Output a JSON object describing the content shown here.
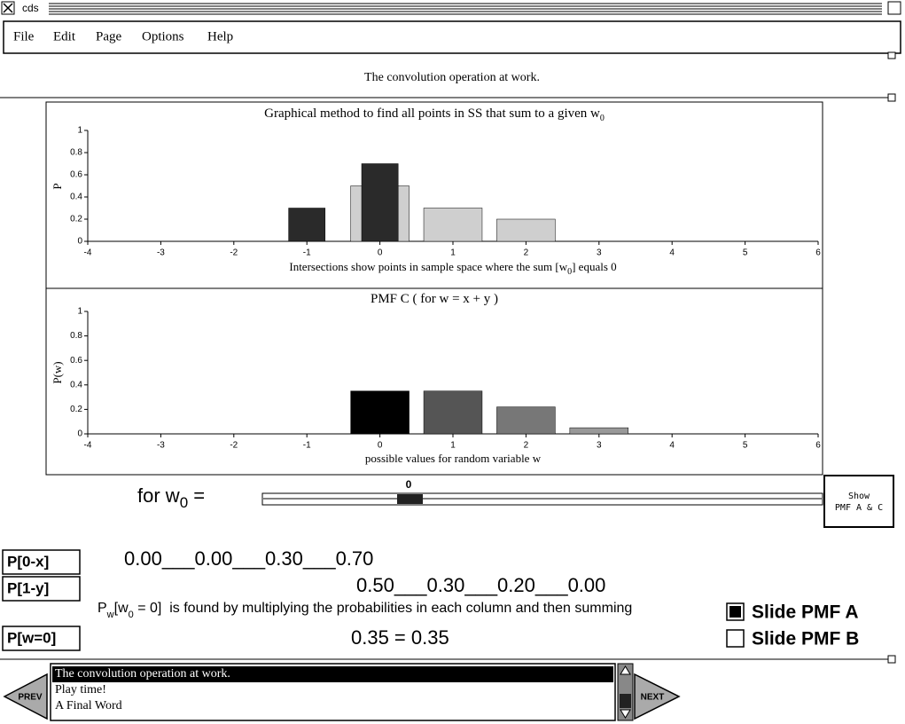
{
  "window": {
    "title": "cds"
  },
  "menu": [
    "File",
    "Edit",
    "Page",
    "Options",
    "Help"
  ],
  "header": "The convolution operation at work.",
  "charts": [
    {
      "type": "bar",
      "title": [
        "Graphical method to find all points in SS that sum to a given w",
        "0"
      ],
      "ylabel": "P",
      "xlabel": [
        "Intersections show points in sample space where the sum [w",
        "0",
        "] equals  0"
      ],
      "xlim": [
        -4,
        6
      ],
      "xticks": [
        -4,
        -3,
        -2,
        -1,
        0,
        1,
        2,
        3,
        4,
        5,
        6
      ],
      "ylim": [
        0,
        1
      ],
      "yticks": [
        0,
        0.2,
        0.4,
        0.6,
        0.8,
        1
      ],
      "series": [
        {
          "color": "#cfcfcf",
          "x": [
            0,
            1,
            2
          ],
          "values": [
            0.5,
            0.3,
            0.2
          ]
        },
        {
          "color": "#2a2a2a",
          "x": [
            -1,
            0
          ],
          "values": [
            0.3,
            0.7
          ]
        }
      ]
    },
    {
      "type": "bar",
      "title": [
        "PMF  C  ( for  w = x + y )"
      ],
      "ylabel": "P(w)",
      "xlabel": [
        "possible values for random variable w"
      ],
      "xlim": [
        -4,
        6
      ],
      "xticks": [
        -4,
        -3,
        -2,
        -1,
        0,
        1,
        2,
        3,
        4,
        5,
        6
      ],
      "ylim": [
        0,
        1
      ],
      "yticks": [
        0,
        0.2,
        0.4,
        0.6,
        0.8,
        1
      ],
      "series": [
        {
          "x": [
            0,
            1,
            2,
            3
          ],
          "values": [
            0.35,
            0.35,
            0.22,
            0.05
          ],
          "colors": [
            "#000000",
            "#555555",
            "#777777",
            "#999999"
          ]
        }
      ]
    }
  ],
  "slider": {
    "label": [
      "for w",
      "0",
      " ="
    ],
    "value": 0
  },
  "button": [
    "Show",
    "PMF A & C"
  ],
  "rows": [
    {
      "label": "P[0-x]",
      "text": "0.00___0.00___0.30___0.70"
    },
    {
      "label": "P[1-y]",
      "text": "0.50___0.30___0.20___0.00"
    }
  ],
  "note": [
    "P",
    "w",
    "[w",
    "0",
    " = 0]  is found by multiplying the probabilities in each column and then summing"
  ],
  "result": {
    "label": "P[w=0]",
    "text": "0.35 = 0.35"
  },
  "checkboxes": [
    {
      "label": "Slide PMF A",
      "checked": true
    },
    {
      "label": "Slide PMF B",
      "checked": false
    }
  ],
  "list": {
    "items": [
      "The convolution operation at work.",
      "Play time!",
      "A Final Word"
    ],
    "selected": 0
  },
  "nav": {
    "prev": "PREV",
    "next": "NEXT"
  }
}
